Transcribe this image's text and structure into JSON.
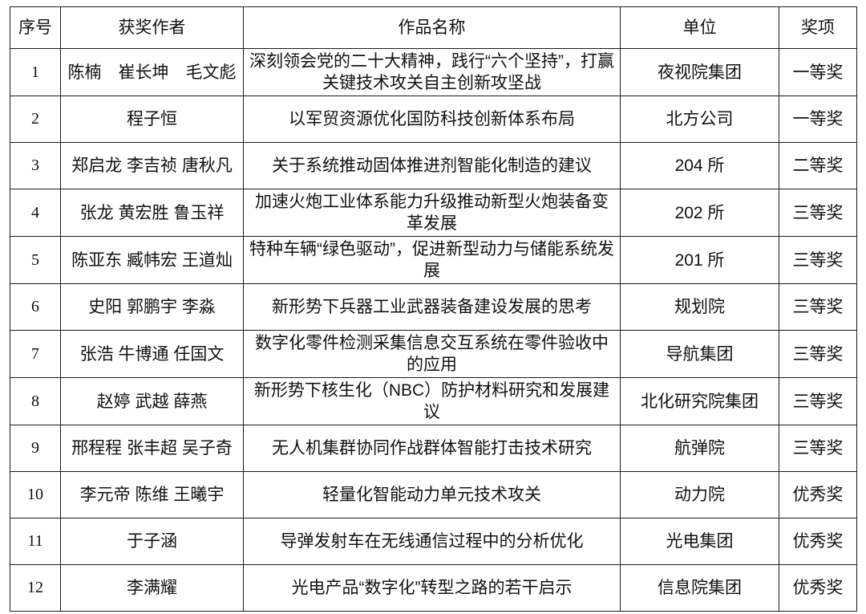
{
  "page": {
    "background_color": "#ffffff",
    "text_color": "#111111",
    "border_color": "#1b1b1b"
  },
  "table": {
    "columns": [
      {
        "key": "index",
        "label": "序号"
      },
      {
        "key": "authors",
        "label": "获奖作者"
      },
      {
        "key": "title",
        "label": "作品名称"
      },
      {
        "key": "unit",
        "label": "单位"
      },
      {
        "key": "award",
        "label": "奖项"
      }
    ],
    "rows": [
      {
        "index": "1",
        "authors": "陈楠　崔长坤　毛文彪",
        "title": "深刻领会党的二十大精神，践行“六个坚持”，打赢关键技术攻关自主创新攻坚战",
        "unit": "夜视院集团",
        "award": "一等奖"
      },
      {
        "index": "2",
        "authors": "程子恒",
        "title": "以军贸资源优化国防科技创新体系布局",
        "unit": "北方公司",
        "award": "一等奖"
      },
      {
        "index": "3",
        "authors": "郑启龙 李吉祯 唐秋凡",
        "title": "关于系统推动固体推进剂智能化制造的建议",
        "unit": "204 所",
        "award": "二等奖"
      },
      {
        "index": "4",
        "authors": "张龙 黄宏胜 鲁玉祥",
        "title": "加速火炮工业体系能力升级推动新型火炮装备变革发展",
        "unit": "202 所",
        "award": "三等奖"
      },
      {
        "index": "5",
        "authors": "陈亚东 臧帏宏 王道灿",
        "title": "特种车辆“绿色驱动”，促进新型动力与储能系统发展",
        "unit": "201 所",
        "award": "三等奖"
      },
      {
        "index": "6",
        "authors": "史阳 郭鹏宇 李淼",
        "title": "新形势下兵器工业武器装备建设发展的思考",
        "unit": "规划院",
        "award": "三等奖"
      },
      {
        "index": "7",
        "authors": "张浩 牛博通 任国文",
        "title": "数字化零件检测采集信息交互系统在零件验收中的应用",
        "unit": "导航集团",
        "award": "三等奖"
      },
      {
        "index": "8",
        "authors": "赵婷 武越 薛燕",
        "title": "新形势下核生化（NBC）防护材料研究和发展建议",
        "unit": "北化研究院集团",
        "award": "三等奖"
      },
      {
        "index": "9",
        "authors": "邢程程 张丰超 吴子奇",
        "title": "无人机集群协同作战群体智能打击技术研究",
        "unit": "航弹院",
        "award": "三等奖"
      },
      {
        "index": "10",
        "authors": "李元帝 陈维 王曦宇",
        "title": "轻量化智能动力单元技术攻关",
        "unit": "动力院",
        "award": "优秀奖"
      },
      {
        "index": "11",
        "authors": "于子涵",
        "title": "导弹发射车在无线通信过程中的分析优化",
        "unit": "光电集团",
        "award": "优秀奖"
      },
      {
        "index": "12",
        "authors": "李满耀",
        "title": "光电产品“数字化”转型之路的若干启示",
        "unit": "信息院集团",
        "award": "优秀奖"
      }
    ]
  }
}
